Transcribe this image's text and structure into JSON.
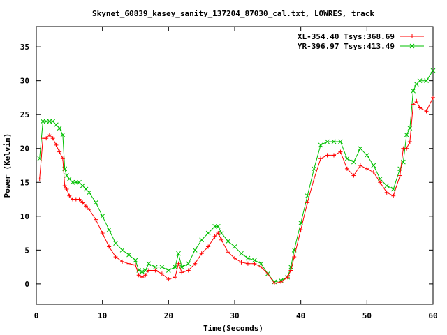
{
  "chart_data": {
    "type": "line",
    "title": "Skynet_60839_kasey_sanity_137204_87030_cal.txt, LOWRES, track",
    "xlabel": "Time(Seconds)",
    "ylabel": "Power (Kelvin)",
    "xlim": [
      0,
      60
    ],
    "ylim": [
      -3,
      38
    ],
    "xticks": [
      0,
      10,
      20,
      30,
      40,
      50,
      60
    ],
    "yticks": [
      0,
      5,
      10,
      15,
      20,
      25,
      30,
      35
    ],
    "grid": false,
    "legend_position": "top-right",
    "series": [
      {
        "name": "XL-354.40 Tsys:368.69",
        "color": "#ff0000",
        "marker": "+",
        "x": [
          0.5,
          1,
          1.5,
          2,
          2.5,
          3,
          3.5,
          4,
          4.3,
          4.6,
          5,
          5.5,
          6,
          6.5,
          7,
          7.5,
          8,
          9,
          10,
          11,
          12,
          13,
          14,
          15,
          15.5,
          16,
          16.5,
          17,
          18,
          19,
          20,
          21,
          21.5,
          22,
          23,
          24,
          25,
          26,
          27,
          27.5,
          28,
          29,
          30,
          31,
          32,
          33,
          34,
          35,
          36,
          37,
          38,
          38.5,
          39,
          40,
          41,
          42,
          43,
          44,
          45,
          46,
          47,
          48,
          49,
          50,
          51,
          52,
          53,
          54,
          55,
          55.5,
          56,
          56.5,
          57,
          57.5,
          58,
          59,
          60
        ],
        "y": [
          15.5,
          21.5,
          21.5,
          22,
          21.5,
          20.5,
          19.5,
          18.5,
          14.5,
          14,
          13,
          12.5,
          12.5,
          12.5,
          12,
          11.5,
          11,
          9.5,
          7.5,
          5.5,
          4,
          3.3,
          3,
          2.8,
          1.3,
          1,
          1.3,
          2,
          2,
          1.5,
          0.7,
          1,
          3,
          1.7,
          2,
          3,
          4.5,
          5.5,
          7,
          7.5,
          6.5,
          4.7,
          3.8,
          3.2,
          3,
          3,
          2.5,
          1.5,
          0.1,
          0.3,
          1,
          2,
          4,
          8,
          12,
          15.5,
          18.5,
          19,
          19,
          19.5,
          17,
          16,
          17.5,
          17,
          16.5,
          15,
          13.5,
          13,
          16,
          20,
          20,
          21,
          26.5,
          27,
          26,
          25.5,
          27.5
        ]
      },
      {
        "name": "YR-396.97 Tsys:413.49",
        "color": "#00c000",
        "marker": "x",
        "x": [
          0.5,
          1,
          1.5,
          2,
          2.5,
          3,
          3.5,
          4,
          4.3,
          4.6,
          5,
          5.5,
          6,
          6.5,
          7,
          7.5,
          8,
          9,
          10,
          11,
          12,
          13,
          14,
          15,
          15.5,
          16,
          16.5,
          17,
          18,
          19,
          20,
          21,
          21.5,
          22,
          23,
          24,
          25,
          26,
          27,
          27.5,
          28,
          29,
          30,
          31,
          32,
          33,
          34,
          35,
          36,
          37,
          38,
          38.5,
          39,
          40,
          41,
          42,
          43,
          44,
          45,
          46,
          47,
          48,
          49,
          50,
          51,
          52,
          53,
          54,
          55,
          55.5,
          56,
          56.5,
          57,
          57.5,
          58,
          59,
          60
        ],
        "y": [
          18.5,
          24,
          24,
          24,
          24,
          23.5,
          23,
          22,
          17,
          16,
          15.5,
          15,
          15,
          15,
          14.5,
          14,
          13.5,
          12,
          10,
          8,
          6,
          5,
          4.3,
          3.5,
          2,
          1.8,
          2,
          3,
          2.5,
          2.5,
          2,
          2.5,
          4.5,
          2.5,
          3,
          5,
          6.5,
          7.5,
          8.5,
          8.5,
          7.5,
          6.3,
          5.5,
          4.5,
          3.8,
          3.5,
          3,
          1.5,
          0.3,
          0.5,
          1,
          2.5,
          5,
          9,
          13,
          17,
          20.5,
          21,
          21,
          21,
          18.5,
          18,
          20,
          19,
          17.5,
          15.5,
          14.5,
          14,
          17,
          18,
          22,
          23,
          28.5,
          29.5,
          30,
          30,
          31.5
        ]
      }
    ]
  }
}
